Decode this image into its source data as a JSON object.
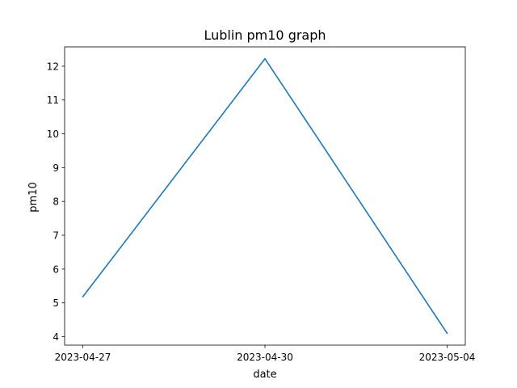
{
  "chart_data": {
    "type": "line",
    "title": "Lublin pm10 graph",
    "xlabel": "date",
    "ylabel": "pm10",
    "categories": [
      "2023-04-27",
      "2023-04-30",
      "2023-05-04"
    ],
    "series": [
      {
        "values": [
          5.18,
          12.22,
          4.1
        ],
        "color": "#1f77b4"
      }
    ],
    "yticks": [
      4,
      5,
      6,
      7,
      8,
      9,
      10,
      11,
      12
    ],
    "ylim": [
      3.75,
      12.57
    ],
    "grid": false,
    "legend": false
  }
}
